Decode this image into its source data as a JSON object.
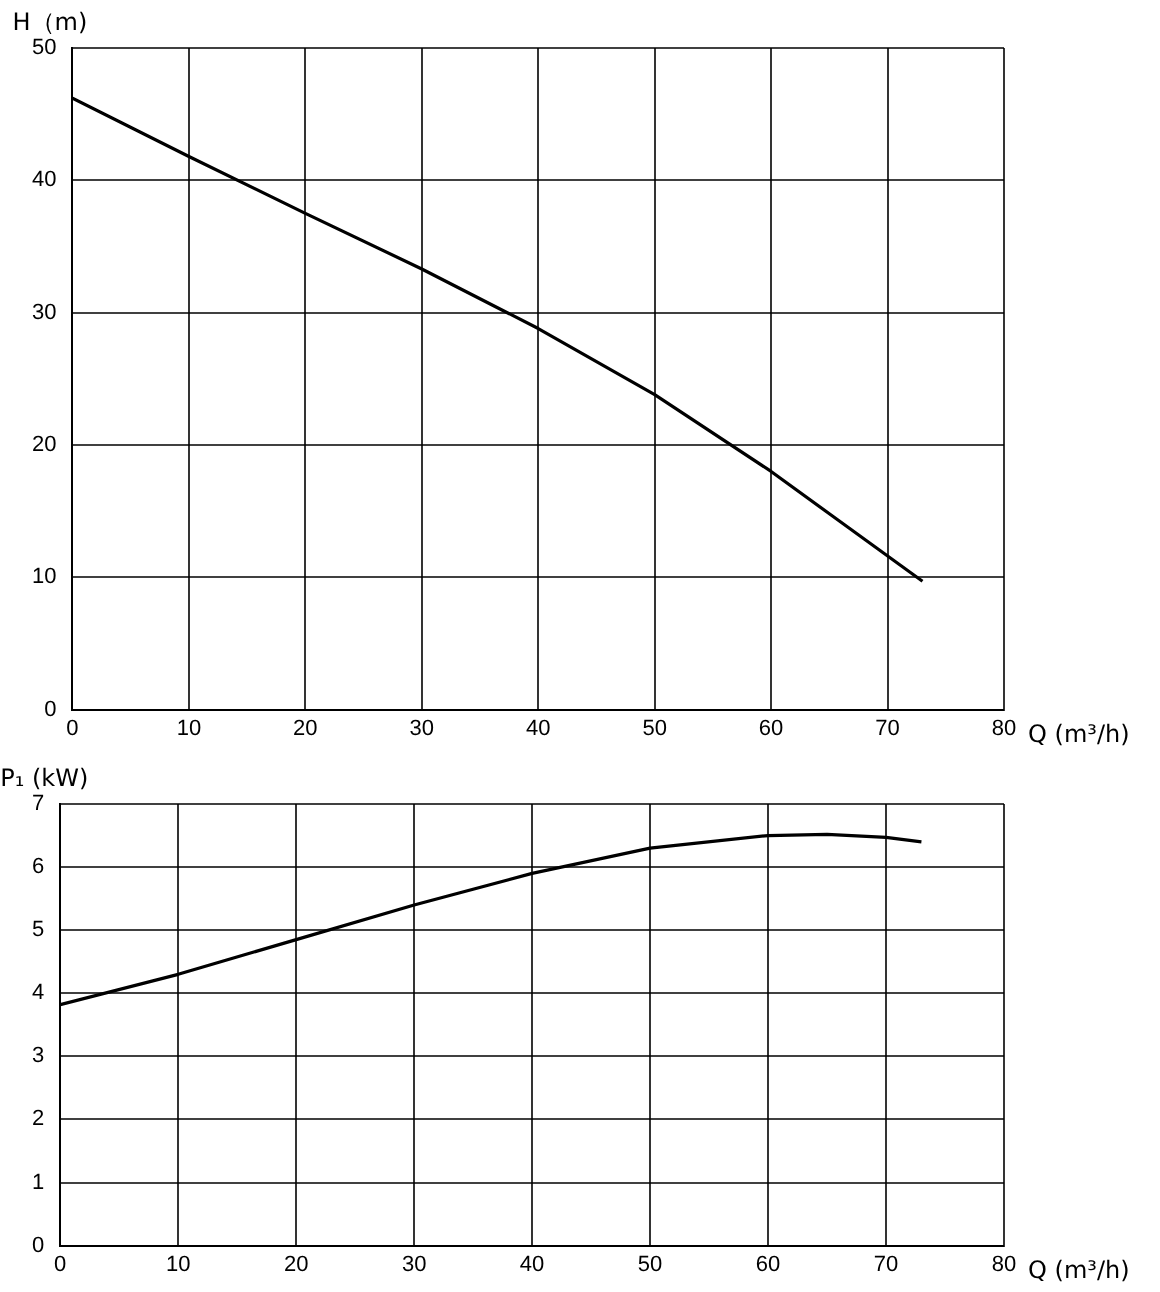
{
  "chart_data": [
    {
      "type": "line",
      "xlabel": "Q (m³/h)",
      "ylabel": "H（m)",
      "x": [
        0,
        10,
        20,
        30,
        40,
        50,
        60,
        65,
        73
      ],
      "series": [
        {
          "color": "#000000",
          "values": [
            46.2,
            41.8,
            37.5,
            33.3,
            28.8,
            23.8,
            18,
            14.8,
            9.7
          ]
        }
      ],
      "xlim": [
        0,
        80
      ],
      "xticks": [
        0,
        10,
        20,
        30,
        40,
        50,
        60,
        70,
        80
      ],
      "ylim": [
        0,
        50
      ],
      "yticks": [
        0,
        10,
        20,
        30,
        40,
        50
      ],
      "grid": true,
      "legend": false,
      "marker": "none",
      "line_style": "solid"
    },
    {
      "type": "line",
      "xlabel": "Q (m³/h)",
      "ylabel": "P₁ (kW)",
      "x": [
        0,
        10,
        20,
        30,
        40,
        50,
        60,
        65,
        70,
        73
      ],
      "series": [
        {
          "color": "#000000",
          "values": [
            3.82,
            4.3,
            4.85,
            5.4,
            5.9,
            6.3,
            6.5,
            6.52,
            6.47,
            6.4
          ]
        }
      ],
      "xlim": [
        0,
        80
      ],
      "xticks": [
        0,
        10,
        20,
        30,
        40,
        50,
        60,
        70,
        80
      ],
      "ylim": [
        0,
        7
      ],
      "yticks": [
        0,
        1,
        2,
        3,
        4,
        5,
        6,
        7
      ],
      "grid": true,
      "legend": false,
      "marker": "none",
      "line_style": "solid"
    }
  ]
}
